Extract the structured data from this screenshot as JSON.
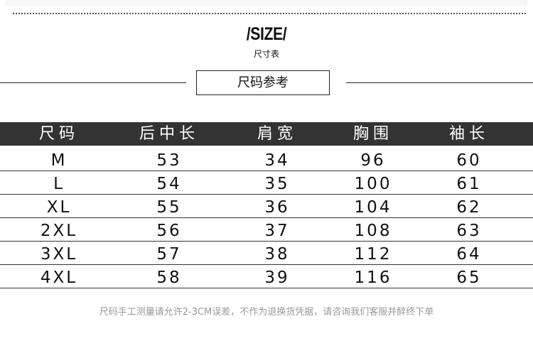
{
  "title": "/SIZE/",
  "subtitle": "尺寸表",
  "section_label": "尺码参考",
  "table": {
    "headers": [
      "尺码",
      "后中长",
      "肩宽",
      "胸围",
      "袖长"
    ],
    "rows": [
      [
        "M",
        "53",
        "34",
        "96",
        "60"
      ],
      [
        "L",
        "54",
        "35",
        "100",
        "61"
      ],
      [
        "XL",
        "55",
        "36",
        "104",
        "62"
      ],
      [
        "2XL",
        "56",
        "37",
        "108",
        "63"
      ],
      [
        "3XL",
        "57",
        "38",
        "112",
        "64"
      ],
      [
        "4XL",
        "58",
        "39",
        "116",
        "65"
      ]
    ]
  },
  "footnote": "尺码手工测量请允许2-3CM误差，不作为退换货凭据，请咨询我们客服并醉终下单",
  "colors": {
    "header_bg": "#333333",
    "footnote": "#999999"
  }
}
